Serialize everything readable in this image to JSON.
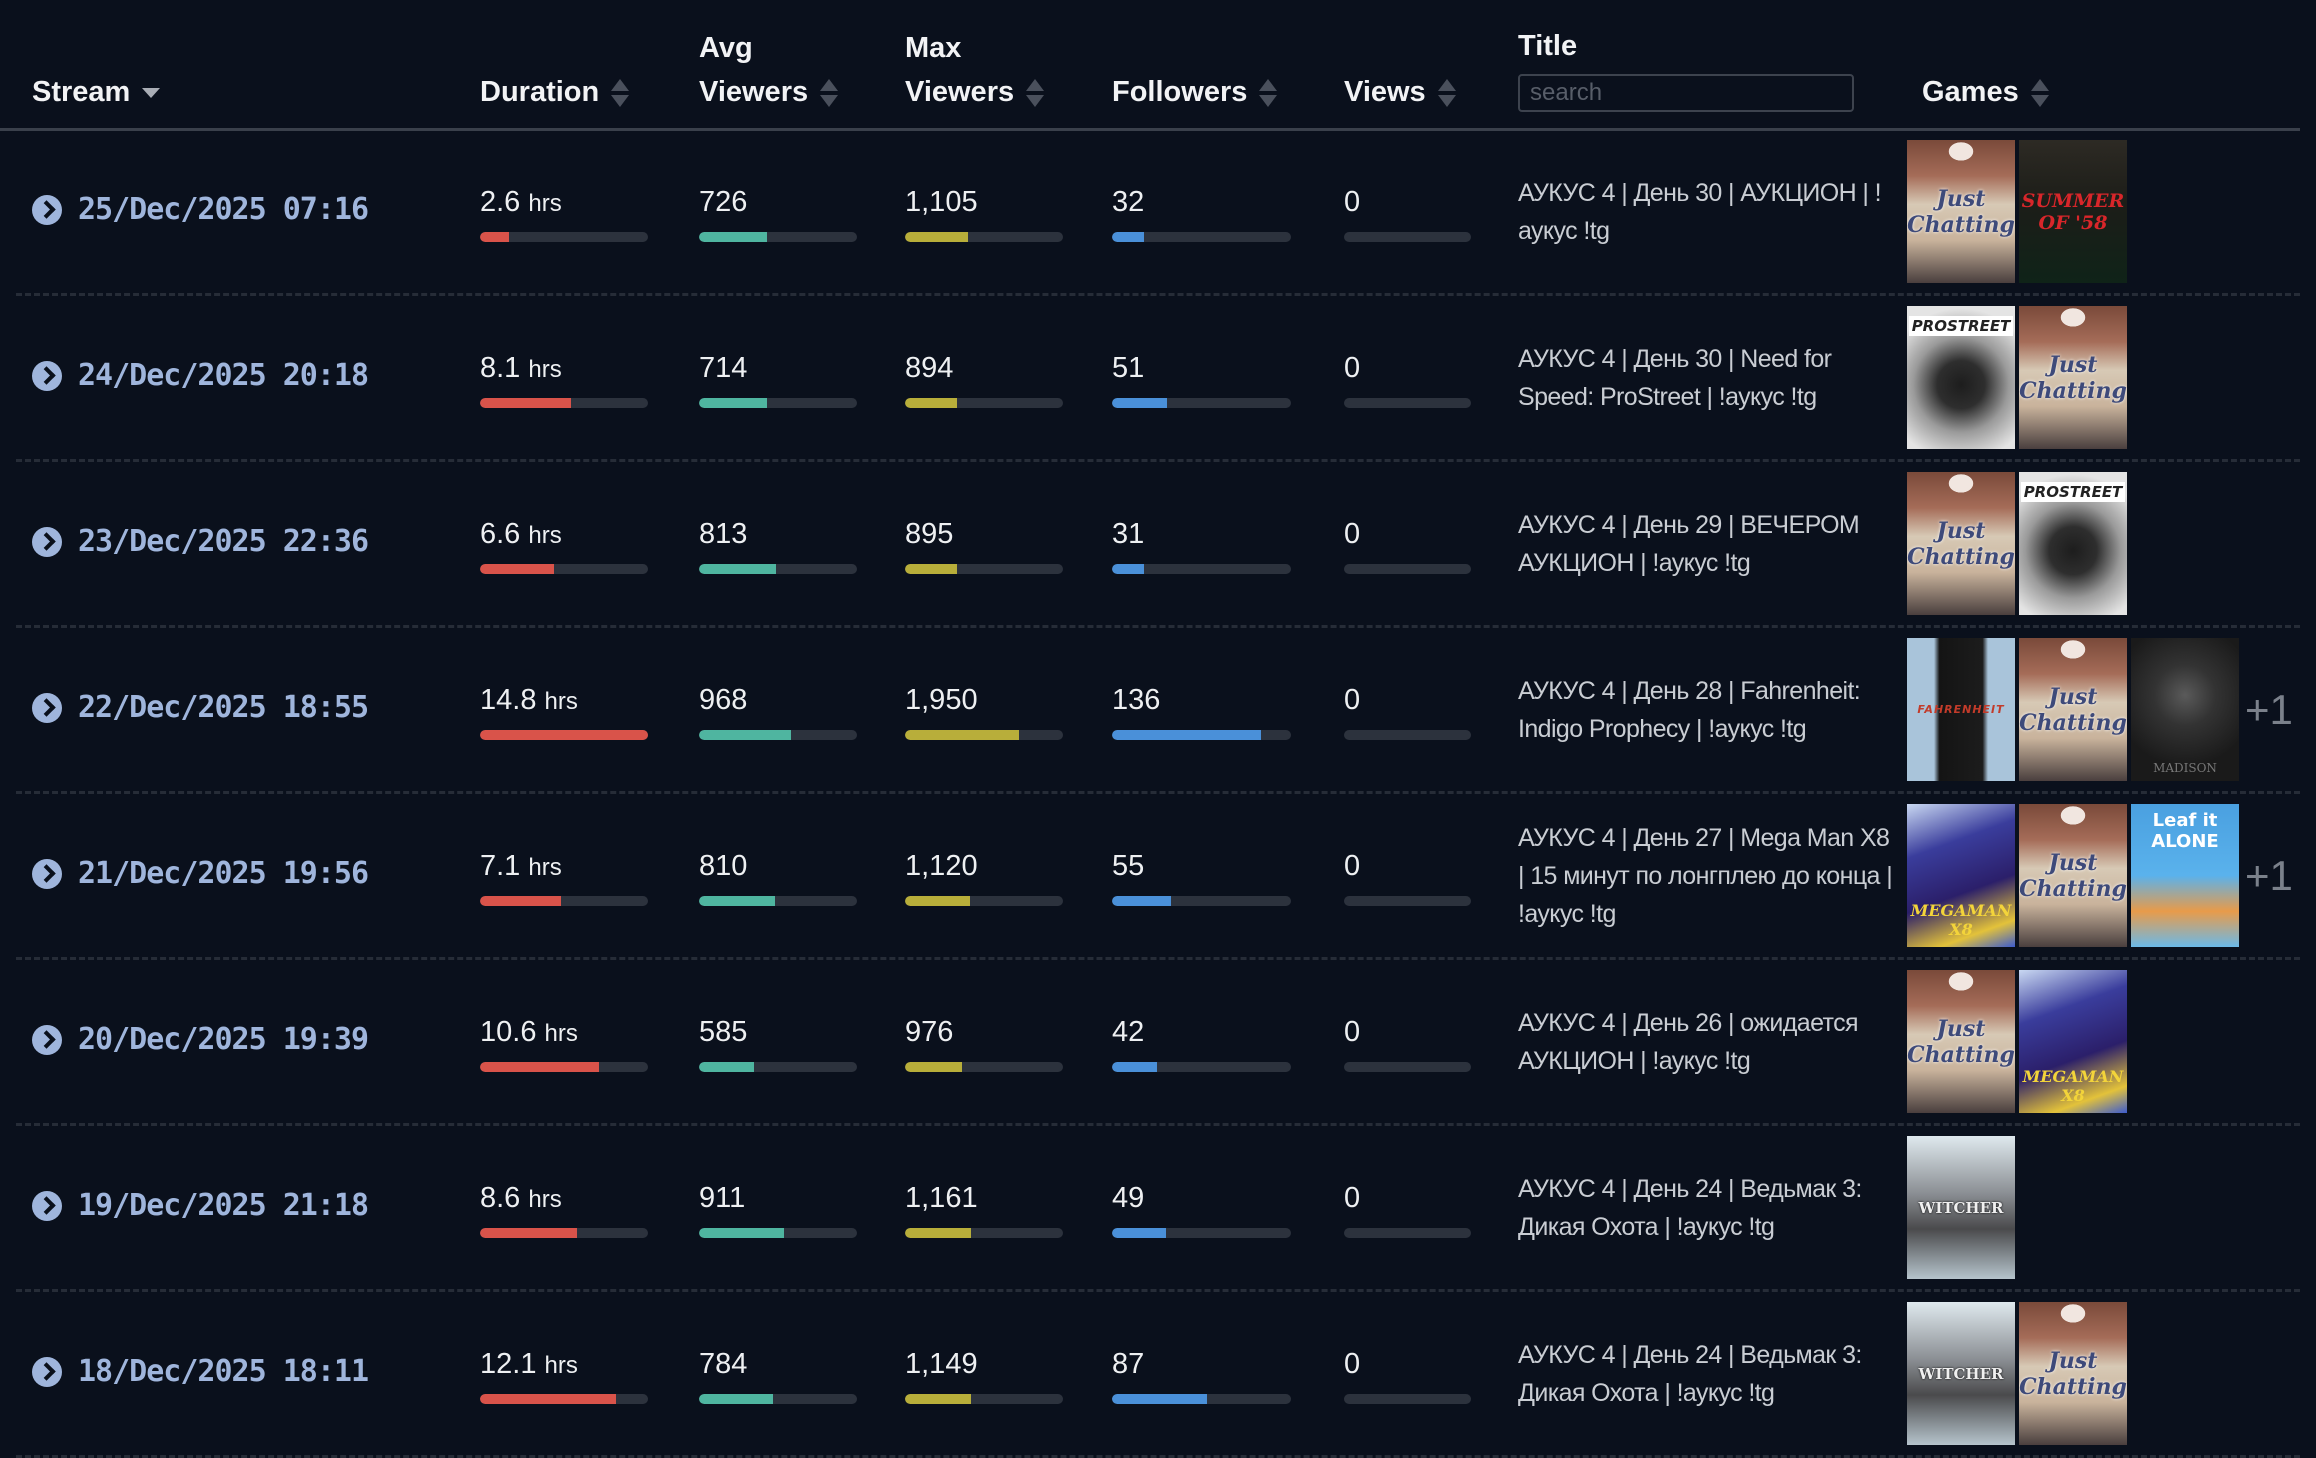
{
  "header": {
    "stream": "Stream",
    "duration": "Duration",
    "avg_viewers": [
      "Avg",
      "Viewers"
    ],
    "max_viewers": [
      "Max",
      "Viewers"
    ],
    "followers": "Followers",
    "views": "Views",
    "title": "Title",
    "title_search_placeholder": "search",
    "games": "Games"
  },
  "colors": {
    "background": "#0a101c",
    "duration_bar": "#d9534a",
    "avg_viewers_bar": "#4fb5a0",
    "max_viewers_bar": "#b8ae3a",
    "followers_bar": "#4a90d9",
    "bar_track": "#2c323d",
    "date_link": "#9fb5dc"
  },
  "hours_unit": "hrs",
  "rows": [
    {
      "date": "25/Dec/2025 07:16",
      "duration": "2.6",
      "duration_pct": 17,
      "avg": "726",
      "avg_pct": 43,
      "max": "1,105",
      "max_pct": 40,
      "followers": "32",
      "followers_pct": 18,
      "views": "0",
      "views_pct": 0,
      "title": "АУКУС 4 | День 30 | АУКЦИОН | !аукус !tg",
      "games": [
        {
          "id": "just-chatting",
          "logo": "Just Chatting"
        },
        {
          "id": "summer-of-58",
          "logo": "SUMMER OF '58"
        }
      ],
      "more": ""
    },
    {
      "date": "24/Dec/2025 20:18",
      "duration": "8.1",
      "duration_pct": 54,
      "avg": "714",
      "avg_pct": 43,
      "max": "894",
      "max_pct": 33,
      "followers": "51",
      "followers_pct": 31,
      "views": "0",
      "views_pct": 0,
      "title": "АУКУС 4 | День 30 | Need for Speed: ProStreet | !аукус !tg",
      "games": [
        {
          "id": "prostreet",
          "logo": "PROSTREET"
        },
        {
          "id": "just-chatting",
          "logo": "Just Chatting"
        }
      ],
      "more": ""
    },
    {
      "date": "23/Dec/2025 22:36",
      "duration": "6.6",
      "duration_pct": 44,
      "avg": "813",
      "avg_pct": 49,
      "max": "895",
      "max_pct": 33,
      "followers": "31",
      "followers_pct": 18,
      "views": "0",
      "views_pct": 0,
      "title": "АУКУС 4 | День 29 | ВЕЧЕРОМ АУКЦИОН | !аукус !tg",
      "games": [
        {
          "id": "just-chatting",
          "logo": "Just Chatting"
        },
        {
          "id": "prostreet",
          "logo": "PROSTREET"
        }
      ],
      "more": ""
    },
    {
      "date": "22/Dec/2025 18:55",
      "duration": "14.8",
      "duration_pct": 100,
      "avg": "968",
      "avg_pct": 58,
      "max": "1,950",
      "max_pct": 72,
      "followers": "136",
      "followers_pct": 83,
      "views": "0",
      "views_pct": 0,
      "title": "АУКУС 4 | День 28 | Fahrenheit: Indigo Prophecy | !аукус !tg",
      "games": [
        {
          "id": "fahrenheit",
          "logo": "FAHRENHEIT"
        },
        {
          "id": "just-chatting",
          "logo": "Just Chatting"
        },
        {
          "id": "madison",
          "logo": "MADISON"
        }
      ],
      "more": "+1"
    },
    {
      "date": "21/Dec/2025 19:56",
      "duration": "7.1",
      "duration_pct": 48,
      "avg": "810",
      "avg_pct": 48,
      "max": "1,120",
      "max_pct": 41,
      "followers": "55",
      "followers_pct": 33,
      "views": "0",
      "views_pct": 0,
      "title": "АУКУС 4 | День 27 | Mega Man X8 | 15 минут по лонгплею до конца | !аукус !tg",
      "games": [
        {
          "id": "megaman-x8",
          "logo": "MEGAMAN X8"
        },
        {
          "id": "just-chatting",
          "logo": "Just Chatting"
        },
        {
          "id": "leaf-it-alone",
          "logo": "Leaf it ALONE"
        }
      ],
      "more": "+1"
    },
    {
      "date": "20/Dec/2025 19:39",
      "duration": "10.6",
      "duration_pct": 71,
      "avg": "585",
      "avg_pct": 35,
      "max": "976",
      "max_pct": 36,
      "followers": "42",
      "followers_pct": 25,
      "views": "0",
      "views_pct": 0,
      "title": "АУКУС 4 | День 26 | ожидается АУКЦИОН | !аукус !tg",
      "games": [
        {
          "id": "just-chatting",
          "logo": "Just Chatting"
        },
        {
          "id": "megaman-x8",
          "logo": "MEGAMAN X8"
        }
      ],
      "more": ""
    },
    {
      "date": "19/Dec/2025 21:18",
      "duration": "8.6",
      "duration_pct": 58,
      "avg": "911",
      "avg_pct": 54,
      "max": "1,161",
      "max_pct": 42,
      "followers": "49",
      "followers_pct": 30,
      "views": "0",
      "views_pct": 0,
      "title": "АУКУС 4 | День 24 | Ведьмак 3: Дикая Охота | !аукус !tg",
      "games": [
        {
          "id": "witcher-3",
          "logo": "WITCHER"
        }
      ],
      "more": ""
    },
    {
      "date": "18/Dec/2025 18:11",
      "duration": "12.1",
      "duration_pct": 81,
      "avg": "784",
      "avg_pct": 47,
      "max": "1,149",
      "max_pct": 42,
      "followers": "87",
      "followers_pct": 53,
      "views": "0",
      "views_pct": 0,
      "title": "АУКУС 4 | День 24 | Ведьмак 3: Дикая Охота | !аукус !tg",
      "games": [
        {
          "id": "witcher-3",
          "logo": "WITCHER"
        },
        {
          "id": "just-chatting",
          "logo": "Just Chatting"
        }
      ],
      "more": ""
    }
  ]
}
